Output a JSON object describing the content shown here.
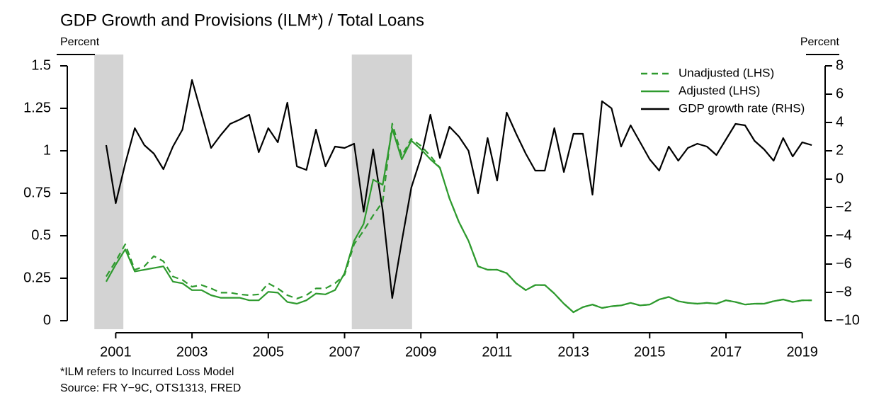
{
  "chart_data": {
    "type": "line",
    "title": "GDP Growth and Provisions (ILM*) / Total Loans",
    "y_label": "Percent",
    "y2_label": "Percent",
    "notes": [
      "*ILM refers to Incurred Loss Model",
      "Source: FR Y−9C, OTS1313, FRED"
    ],
    "xlim": [
      1999.73,
      2019.6
    ],
    "xticks": [
      2001,
      2003,
      2005,
      2007,
      2009,
      2011,
      2013,
      2015,
      2017,
      2019
    ],
    "ylim": [
      0,
      1.5
    ],
    "yticks": [
      0,
      0.25,
      0.5,
      0.75,
      1,
      1.25,
      1.5
    ],
    "y2lim": [
      -10,
      8
    ],
    "y2ticks": [
      {
        "value": -10,
        "label": "−10"
      },
      {
        "value": -8,
        "label": "−8"
      },
      {
        "value": -6,
        "label": "−6"
      },
      {
        "value": -4,
        "label": "−4"
      },
      {
        "value": -2,
        "label": "−2"
      },
      0,
      2,
      4,
      6,
      8
    ],
    "shaded_periods": [
      [
        2000.44,
        2001.2
      ],
      [
        2007.19,
        2008.77
      ]
    ],
    "shade_color": "#d3d3d3",
    "legend": "top-right",
    "x": [
      2000.75,
      2001,
      2001.25,
      2001.5,
      2001.75,
      2002,
      2002.25,
      2002.5,
      2002.75,
      2003,
      2003.25,
      2003.5,
      2003.75,
      2004,
      2004.25,
      2004.5,
      2004.75,
      2005,
      2005.25,
      2005.5,
      2005.75,
      2006,
      2006.25,
      2006.5,
      2006.75,
      2007,
      2007.25,
      2007.5,
      2007.75,
      2008,
      2008.25,
      2008.5,
      2008.75,
      2009,
      2009.25,
      2009.5,
      2009.75,
      2010,
      2010.25,
      2010.5,
      2010.75,
      2011,
      2011.25,
      2011.5,
      2011.75,
      2012,
      2012.25,
      2012.5,
      2012.75,
      2013,
      2013.25,
      2013.5,
      2013.75,
      2014,
      2014.25,
      2014.5,
      2014.75,
      2015,
      2015.25,
      2015.5,
      2015.75,
      2016,
      2016.25,
      2016.5,
      2016.75,
      2017,
      2017.25,
      2017.5,
      2017.75,
      2018,
      2018.25,
      2018.5,
      2018.75,
      2019,
      2019.25
    ],
    "series": [
      {
        "name": "Unadjusted (LHS)",
        "color": "#2e9a2e",
        "dashed": true,
        "axis": "y",
        "values": [
          0.26,
          0.35,
          0.45,
          0.3,
          0.32,
          0.38,
          0.35,
          0.26,
          0.24,
          0.2,
          0.21,
          0.19,
          0.165,
          0.165,
          0.155,
          0.15,
          0.155,
          0.22,
          0.19,
          0.15,
          0.13,
          0.15,
          0.19,
          0.19,
          0.22,
          0.27,
          0.45,
          0.53,
          0.62,
          0.7,
          1.16,
          0.97,
          1.07,
          1.03,
          0.97,
          0.9,
          0.72,
          0.58,
          0.47,
          0.32,
          0.3,
          0.3,
          0.28,
          0.22,
          0.18,
          0.21,
          0.21,
          0.16,
          0.1,
          0.05,
          0.08,
          0.095,
          0.075,
          0.085,
          0.09,
          0.105,
          0.09,
          0.095,
          0.125,
          0.14,
          0.115,
          0.105,
          0.1,
          0.105,
          0.1,
          0.12,
          0.11,
          0.095,
          0.1,
          0.1,
          0.115,
          0.125,
          0.11,
          0.12,
          0.12
        ]
      },
      {
        "name": "Adjusted (LHS)",
        "color": "#2e9a2e",
        "dashed": false,
        "axis": "y",
        "values": [
          0.23,
          0.33,
          0.42,
          0.29,
          0.3,
          0.31,
          0.32,
          0.23,
          0.22,
          0.18,
          0.18,
          0.15,
          0.135,
          0.135,
          0.135,
          0.12,
          0.12,
          0.17,
          0.165,
          0.11,
          0.1,
          0.12,
          0.16,
          0.155,
          0.18,
          0.28,
          0.47,
          0.57,
          0.83,
          0.8,
          1.13,
          0.95,
          1.06,
          1.01,
          0.95,
          0.9,
          0.72,
          0.58,
          0.47,
          0.32,
          0.3,
          0.3,
          0.28,
          0.22,
          0.18,
          0.21,
          0.21,
          0.16,
          0.1,
          0.05,
          0.08,
          0.095,
          0.075,
          0.085,
          0.09,
          0.105,
          0.09,
          0.095,
          0.125,
          0.14,
          0.115,
          0.105,
          0.1,
          0.105,
          0.1,
          0.12,
          0.11,
          0.095,
          0.1,
          0.1,
          0.115,
          0.125,
          0.11,
          0.12,
          0.12
        ]
      },
      {
        "name": "GDP growth rate (RHS)",
        "color": "#000000",
        "dashed": false,
        "axis": "y2",
        "values": [
          2.4,
          -1.7,
          1.1,
          3.6,
          2.4,
          1.8,
          0.7,
          2.3,
          3.5,
          7.0,
          4.6,
          2.2,
          3.1,
          3.9,
          4.2,
          4.55,
          1.9,
          3.6,
          2.6,
          5.4,
          0.9,
          0.65,
          3.5,
          0.9,
          2.3,
          2.2,
          2.5,
          -2.3,
          2.1,
          -2.2,
          -8.4,
          -4.4,
          -0.6,
          1.5,
          4.55,
          1.5,
          3.7,
          3.0,
          2.0,
          -1.0,
          2.9,
          -0.1,
          4.7,
          3.2,
          1.8,
          0.6,
          0.6,
          3.6,
          0.5,
          3.2,
          3.2,
          -1.1,
          5.5,
          5.0,
          2.3,
          3.8,
          2.6,
          1.4,
          0.6,
          2.3,
          1.3,
          2.2,
          2.5,
          2.3,
          1.7,
          2.8,
          3.9,
          3.8,
          2.7,
          2.1,
          1.3,
          2.9,
          1.6,
          2.6,
          2.4
        ]
      }
    ]
  }
}
